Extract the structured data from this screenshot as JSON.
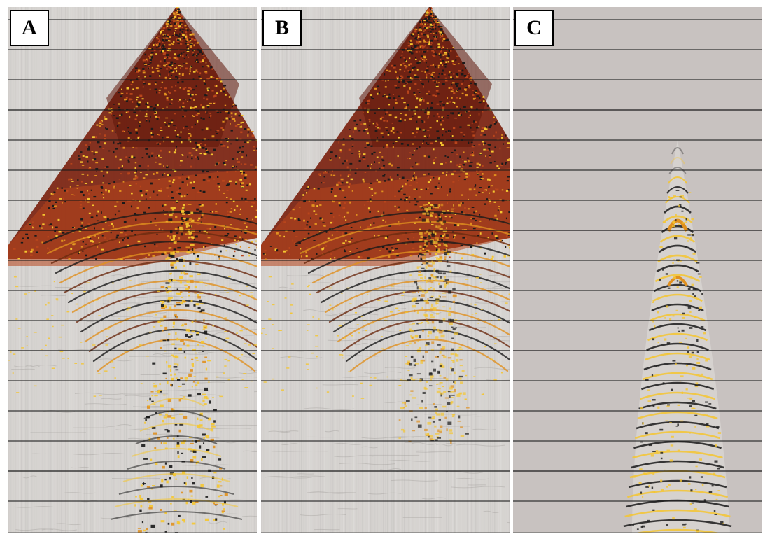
{
  "panels": [
    {
      "id": "panel-a",
      "label": "A",
      "type": "raw-gather",
      "background": "#d6d3d0"
    },
    {
      "id": "panel-b",
      "label": "B",
      "type": "filtered-gather",
      "background": "#d6d3d0"
    },
    {
      "id": "panel-c",
      "label": "C",
      "type": "difference",
      "background": "#c8c2c0"
    }
  ],
  "colors": {
    "grid_line": "#1a1a1a",
    "amplitude_dark": "#7a1f0c",
    "amplitude_red": "#b8451c",
    "amplitude_orange": "#e0901f",
    "amplitude_yellow": "#f5c630",
    "amplitude_black": "#1a1a1a"
  },
  "grid": {
    "horizontal_line_count": 17
  }
}
